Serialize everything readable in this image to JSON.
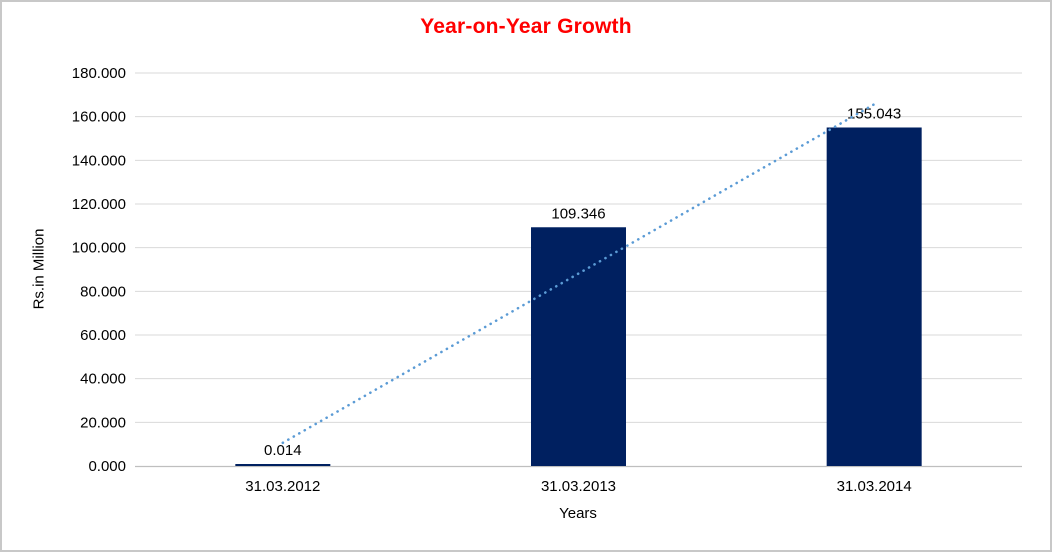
{
  "chart_data": {
    "type": "bar",
    "title": "Year-on-Year Growth",
    "xlabel": "Years",
    "ylabel": "Rs.in Million",
    "categories": [
      "31.03.2012",
      "31.03.2013",
      "31.03.2014"
    ],
    "values": [
      0.014,
      109.346,
      155.043
    ],
    "data_labels": [
      "0.014",
      "109.346",
      "155.043"
    ],
    "ylim": [
      0,
      180
    ],
    "yticks": [
      {
        "value": 0,
        "label": "0.000"
      },
      {
        "value": 20,
        "label": "20.000"
      },
      {
        "value": 40,
        "label": "40.000"
      },
      {
        "value": 60,
        "label": "60.000"
      },
      {
        "value": 80,
        "label": "80.000"
      },
      {
        "value": 100,
        "label": "100.000"
      },
      {
        "value": 120,
        "label": "120.000"
      },
      {
        "value": 140,
        "label": "140.000"
      },
      {
        "value": 160,
        "label": "160.000"
      },
      {
        "value": 180,
        "label": "180.000"
      }
    ],
    "grid": true,
    "legend": false,
    "trendline": {
      "type": "linear",
      "style": "dotted"
    },
    "colors": {
      "bar": "#002060",
      "title": "#FF0000",
      "trendline": "#5B9BD5",
      "gridline": "#D9D9D9",
      "axis_line": "#BFBFBF",
      "text": "#000000",
      "frame_border": "#C8C8C8",
      "background": "#FFFFFF"
    }
  }
}
